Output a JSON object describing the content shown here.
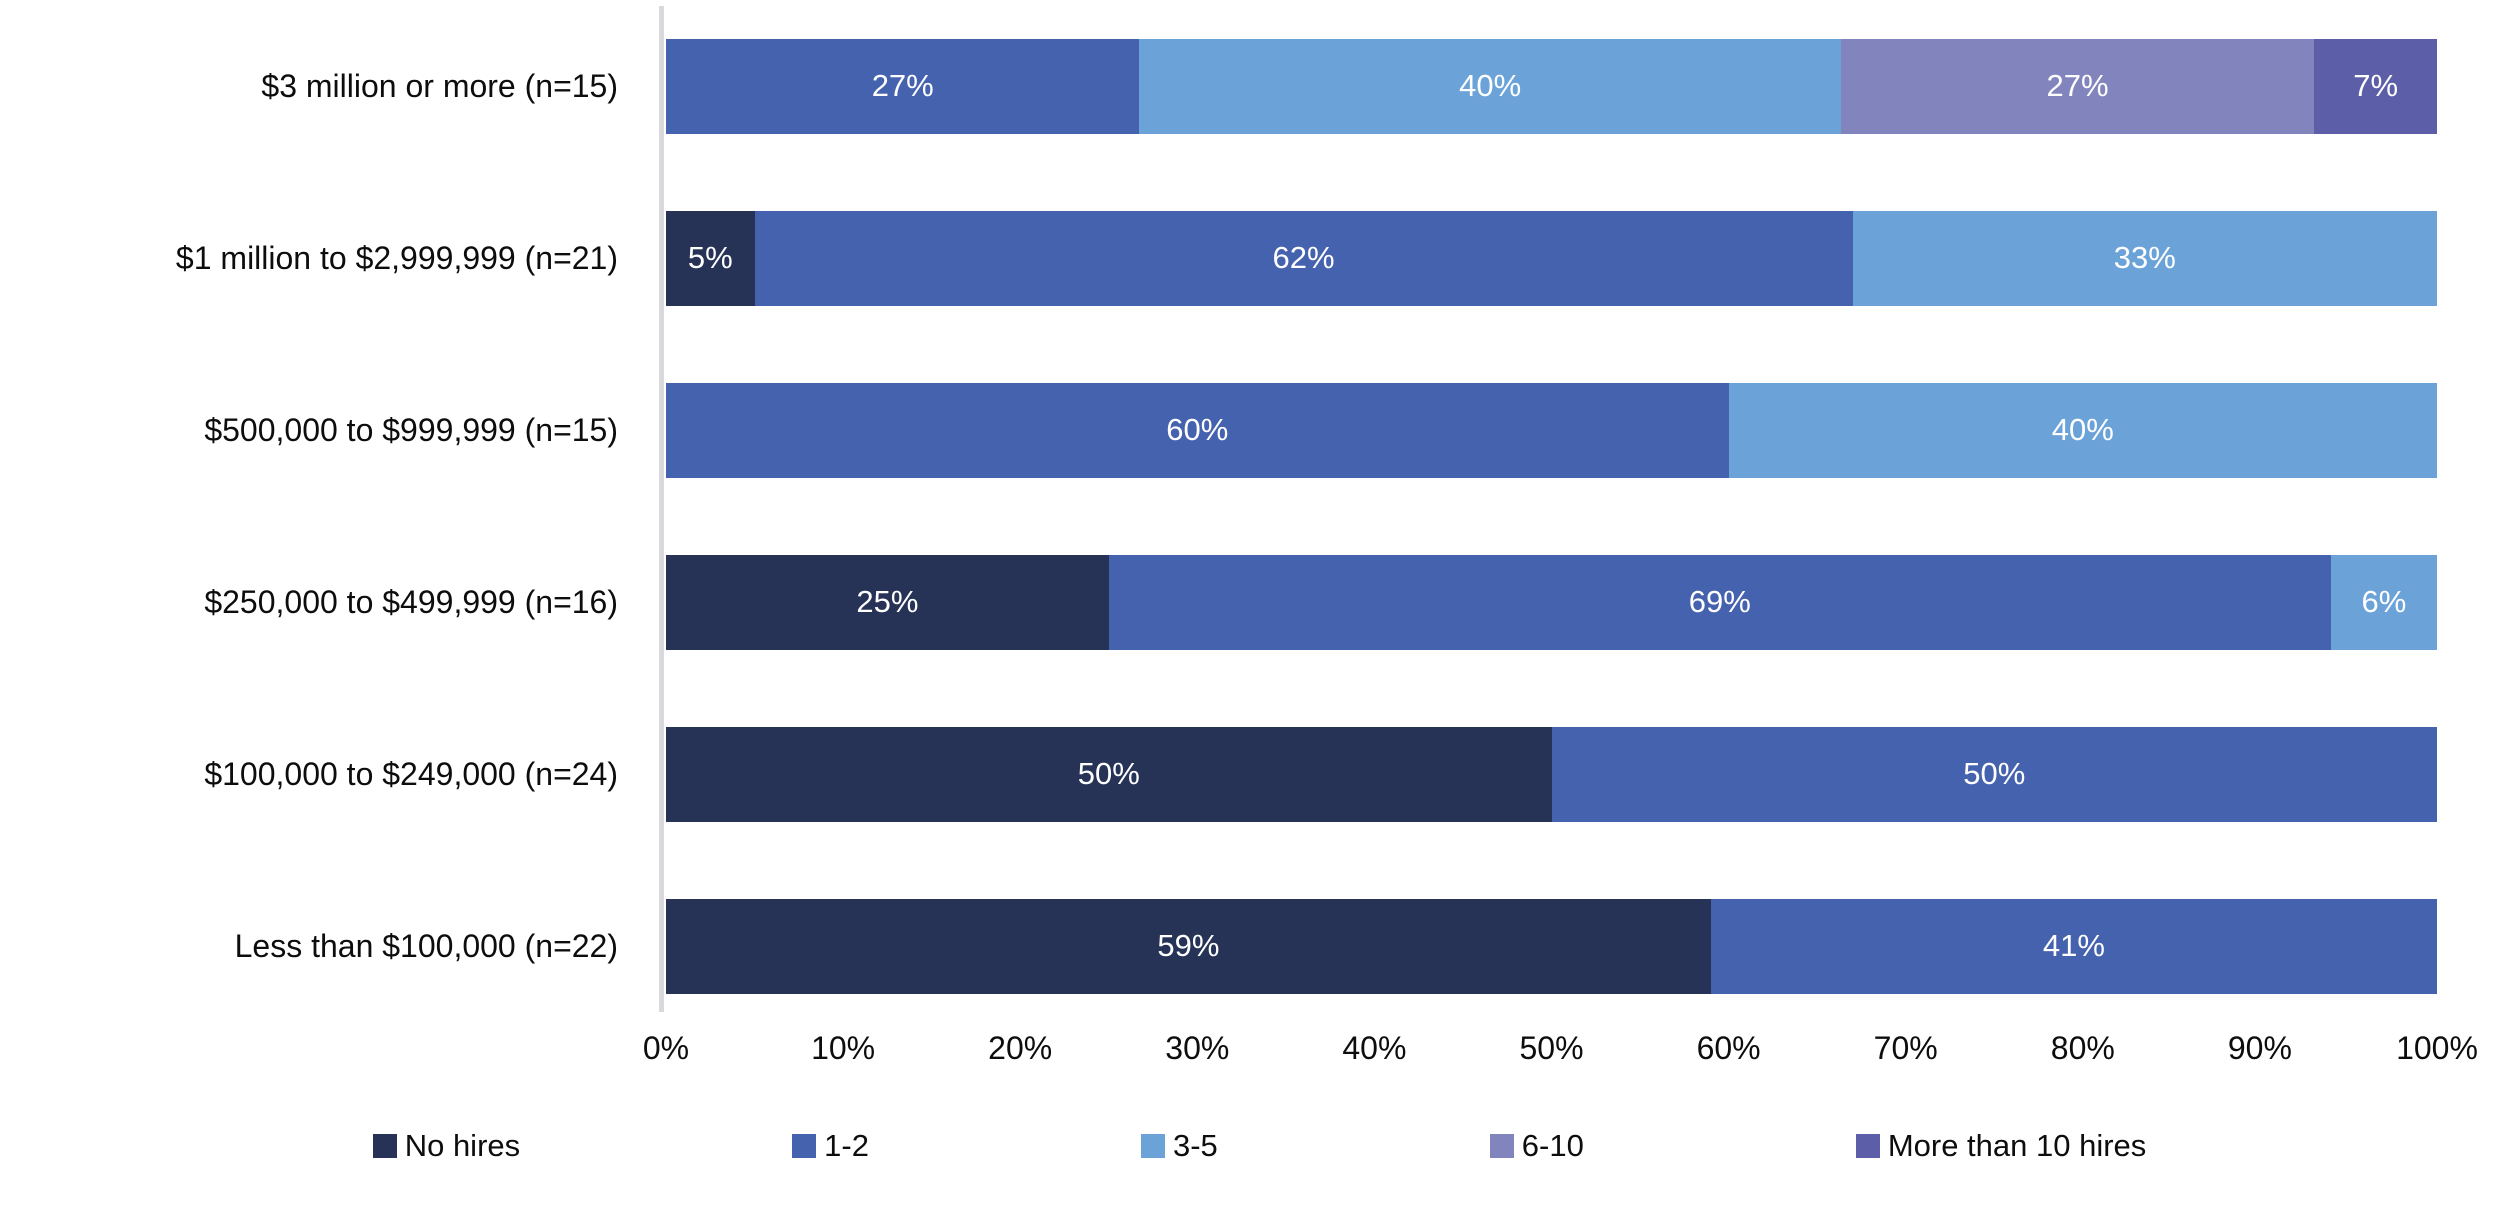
{
  "chart_data": {
    "type": "bar",
    "orientation": "horizontal",
    "stacked": true,
    "title": "",
    "xlabel": "",
    "ylabel": "",
    "xlim": [
      0,
      100
    ],
    "x_ticks": [
      "0%",
      "10%",
      "20%",
      "30%",
      "40%",
      "50%",
      "60%",
      "70%",
      "80%",
      "90%",
      "100%"
    ],
    "grid": false,
    "legend_position": "bottom",
    "categories": [
      "$3 million or more (n=15)",
      "$1 million to $2,999,999 (n=21)",
      "$500,000 to $999,999 (n=15)",
      "$250,000 to $499,999 (n=16)",
      "$100,000 to $249,000 (n=24)",
      "Less than $100,000 (n=22)"
    ],
    "series": [
      {
        "name": "No hires",
        "color": "#263357",
        "values": [
          0,
          5,
          0,
          25,
          50,
          59
        ]
      },
      {
        "name": "1-2",
        "color": "#4562ae",
        "values": [
          27,
          62,
          60,
          69,
          50,
          41
        ]
      },
      {
        "name": "3-5",
        "color": "#6ba3d9",
        "values": [
          40,
          33,
          40,
          6,
          0,
          0
        ]
      },
      {
        "name": "6-10",
        "color": "#8284be",
        "values": [
          27,
          0,
          0,
          0,
          0,
          0
        ]
      },
      {
        "name": "More than 10 hires",
        "color": "#5c5fa7",
        "values": [
          7,
          0,
          0,
          0,
          0,
          0
        ]
      }
    ],
    "data_label_suffix": "%",
    "data_label_color": "#ffffff",
    "axis_line_color": "#d9d9dd"
  }
}
